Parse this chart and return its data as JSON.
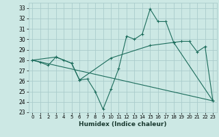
{
  "xlabel": "Humidex (Indice chaleur)",
  "ylabel": "",
  "background_color": "#cce8e4",
  "grid_color": "#aacccc",
  "line_color": "#1a6b5a",
  "ylim": [
    23,
    33.5
  ],
  "xlim": [
    -0.5,
    23.5
  ],
  "yticks": [
    23,
    24,
    25,
    26,
    27,
    28,
    29,
    30,
    31,
    32,
    33
  ],
  "xticks": [
    0,
    1,
    2,
    3,
    4,
    5,
    6,
    7,
    8,
    9,
    10,
    11,
    12,
    13,
    14,
    15,
    16,
    17,
    18,
    19,
    20,
    21,
    22,
    23
  ],
  "series1_x": [
    0,
    1,
    2,
    3,
    4,
    5,
    6,
    7,
    8,
    9,
    10,
    11,
    12,
    13,
    14,
    15,
    16,
    17,
    18,
    19,
    20,
    21,
    22,
    23
  ],
  "series1_y": [
    28.0,
    27.8,
    27.5,
    28.3,
    28.0,
    27.7,
    26.1,
    26.2,
    25.0,
    23.3,
    25.2,
    27.2,
    30.3,
    30.0,
    30.5,
    32.9,
    31.7,
    31.7,
    29.7,
    29.8,
    29.8,
    28.8,
    29.3,
    24.1
  ],
  "series2_x": [
    0,
    3,
    5,
    6,
    10,
    15,
    18,
    23
  ],
  "series2_y": [
    28.0,
    28.3,
    27.7,
    26.1,
    28.2,
    29.4,
    29.7,
    24.1
  ],
  "series3_x": [
    0,
    23
  ],
  "series3_y": [
    28.0,
    24.1
  ]
}
